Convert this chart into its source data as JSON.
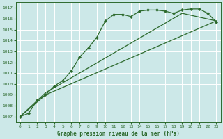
{
  "bg_color": "#cce8e8",
  "grid_color": "#ffffff",
  "line_color": "#2d6a2d",
  "title": "Graphe pression niveau de la mer (hPa)",
  "xlim": [
    -0.5,
    23.5
  ],
  "ylim": [
    1006.5,
    1017.5
  ],
  "yticks": [
    1007,
    1008,
    1009,
    1010,
    1011,
    1012,
    1013,
    1014,
    1015,
    1016,
    1017
  ],
  "xticks": [
    0,
    1,
    2,
    3,
    4,
    5,
    6,
    7,
    8,
    9,
    10,
    11,
    12,
    13,
    14,
    15,
    16,
    17,
    18,
    19,
    20,
    21,
    22,
    23
  ],
  "line1_x": [
    0,
    1,
    2,
    3,
    4,
    5,
    6,
    7,
    8,
    9,
    10,
    11,
    12,
    13,
    14,
    15,
    16,
    17,
    18,
    19,
    20,
    21,
    22,
    23
  ],
  "line1_y": [
    1007.0,
    1007.3,
    1008.5,
    1009.0,
    1009.8,
    1010.3,
    1011.2,
    1012.5,
    1013.3,
    1014.3,
    1015.8,
    1016.4,
    1016.4,
    1016.2,
    1016.7,
    1016.8,
    1016.8,
    1016.7,
    1016.5,
    1016.8,
    1016.9,
    1016.9,
    1016.5,
    1015.7
  ],
  "line2_x": [
    0,
    3,
    23
  ],
  "line2_y": [
    1007.0,
    1009.0,
    1015.8
  ],
  "line3_x": [
    0,
    3,
    19,
    23
  ],
  "line3_y": [
    1007.0,
    1009.2,
    1016.5,
    1015.8
  ]
}
